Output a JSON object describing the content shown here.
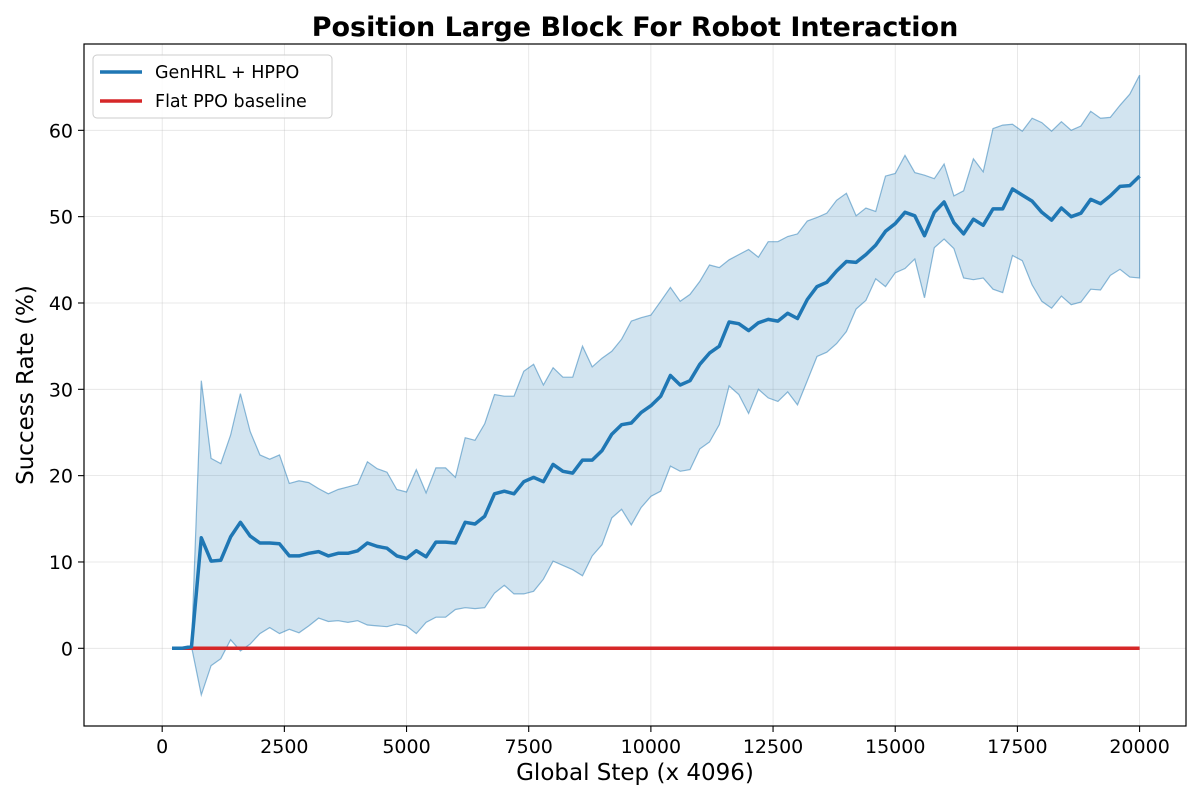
{
  "chart_data": {
    "type": "line",
    "title": "Position Large Block For Robot Interaction",
    "xlabel": "Global Step (x 4096)",
    "ylabel": "Success Rate (%)",
    "xlim": [
      -1600,
      20950
    ],
    "ylim": [
      -9,
      70
    ],
    "xticks": [
      0,
      2500,
      5000,
      7500,
      10000,
      12500,
      15000,
      17500,
      20000
    ],
    "yticks": [
      0,
      10,
      20,
      30,
      40,
      50,
      60
    ],
    "grid": true,
    "legend_position": "top-left",
    "colors": {
      "genhrl": "#1f77b4",
      "band": "#1f77b4",
      "baseline": "#d62728"
    },
    "series": [
      {
        "name": "GenHRL + HPPO",
        "x": [
          200,
          400,
          600,
          800,
          1000,
          1200,
          1400,
          1600,
          1800,
          2000,
          2200,
          2400,
          2600,
          2800,
          3000,
          3200,
          3400,
          3600,
          3800,
          4000,
          4200,
          4400,
          4600,
          4800,
          5000,
          5200,
          5400,
          5600,
          5800,
          6000,
          6200,
          6400,
          6600,
          6800,
          7000,
          7200,
          7400,
          7600,
          7800,
          8000,
          8200,
          8400,
          8600,
          8800,
          9000,
          9200,
          9400,
          9600,
          9800,
          10000,
          10200,
          10400,
          10600,
          10800,
          11000,
          11200,
          11400,
          11600,
          11800,
          12000,
          12200,
          12400,
          12600,
          12800,
          13000,
          13200,
          13400,
          13600,
          13800,
          14000,
          14200,
          14400,
          14600,
          14800,
          15000,
          15200,
          15400,
          15600,
          15800,
          16000,
          16200,
          16400,
          16600,
          16800,
          17000,
          17200,
          17400,
          17600,
          17800,
          18000,
          18200,
          18400,
          18600,
          18800,
          19000,
          19200,
          19400,
          19600,
          19800,
          20000
        ],
        "mean": [
          0,
          0,
          0.2,
          12.8,
          10.1,
          10.2,
          12.9,
          14.6,
          13.0,
          12.2,
          12.2,
          12.1,
          10.7,
          10.7,
          11.0,
          11.2,
          10.7,
          11.0,
          11.0,
          11.3,
          12.2,
          11.8,
          11.6,
          10.7,
          10.4,
          11.3,
          10.6,
          12.3,
          12.3,
          12.2,
          14.6,
          14.4,
          15.3,
          17.9,
          18.2,
          17.9,
          19.3,
          19.8,
          19.3,
          21.3,
          20.5,
          20.3,
          21.8,
          21.8,
          22.9,
          24.8,
          25.9,
          26.1,
          27.3,
          28.1,
          29.2,
          31.6,
          30.5,
          31.0,
          32.9,
          34.2,
          35.0,
          37.8,
          37.6,
          36.8,
          37.7,
          38.1,
          37.9,
          38.8,
          38.2,
          40.4,
          41.9,
          42.4,
          43.7,
          44.8,
          44.7,
          45.6,
          46.7,
          48.3,
          49.2,
          50.5,
          50.1,
          47.8,
          50.5,
          51.7,
          49.3,
          48.0,
          49.7,
          49.0,
          50.9,
          50.9,
          53.2,
          52.5,
          51.8,
          50.5,
          49.6,
          51.0,
          50.0,
          50.4,
          52.0,
          51.5,
          52.4,
          53.5,
          53.6,
          54.7
        ],
        "upper": [
          0,
          0,
          0.2,
          31.0,
          22.0,
          21.4,
          24.7,
          29.5,
          25.1,
          22.4,
          21.9,
          22.4,
          19.1,
          19.4,
          19.2,
          18.5,
          17.9,
          18.4,
          18.7,
          19.0,
          21.6,
          20.8,
          20.4,
          18.4,
          18.1,
          20.7,
          18.0,
          20.9,
          20.9,
          19.8,
          24.4,
          24.1,
          26.0,
          29.4,
          29.2,
          29.2,
          32.1,
          32.9,
          30.5,
          32.5,
          31.4,
          31.4,
          35.0,
          32.6,
          33.6,
          34.4,
          35.8,
          37.9,
          38.3,
          38.6,
          40.2,
          41.8,
          40.2,
          41.0,
          42.5,
          44.4,
          44.1,
          45.0,
          45.6,
          46.2,
          45.3,
          47.1,
          47.1,
          47.7,
          48.0,
          49.5,
          49.9,
          50.4,
          51.9,
          52.7,
          50.1,
          51.0,
          50.6,
          54.7,
          55.0,
          57.1,
          55.1,
          54.8,
          54.4,
          56.1,
          52.4,
          53.0,
          56.7,
          55.2,
          60.2,
          60.6,
          60.7,
          59.9,
          61.4,
          60.9,
          59.9,
          61.0,
          60.0,
          60.5,
          62.2,
          61.4,
          61.5,
          62.9,
          64.2,
          66.4
        ],
        "lower": [
          0,
          0,
          0.2,
          -5.4,
          -2.0,
          -1.2,
          1.0,
          -0.3,
          0.5,
          1.7,
          2.4,
          1.7,
          2.2,
          1.8,
          2.6,
          3.5,
          3.1,
          3.2,
          3.0,
          3.2,
          2.7,
          2.6,
          2.5,
          2.8,
          2.6,
          1.7,
          3.0,
          3.6,
          3.6,
          4.5,
          4.7,
          4.6,
          4.7,
          6.4,
          7.3,
          6.3,
          6.3,
          6.6,
          8.0,
          10.1,
          9.6,
          9.1,
          8.4,
          10.7,
          12.0,
          15.1,
          16.1,
          14.3,
          16.3,
          17.6,
          18.2,
          21.1,
          20.5,
          20.7,
          23.1,
          23.9,
          25.9,
          30.4,
          29.4,
          27.2,
          30.0,
          29.0,
          28.6,
          29.7,
          28.2,
          31.0,
          33.8,
          34.3,
          35.3,
          36.7,
          39.3,
          40.3,
          42.8,
          41.9,
          43.5,
          44.0,
          45.1,
          40.6,
          46.4,
          47.4,
          46.3,
          42.9,
          42.7,
          42.9,
          41.6,
          41.2,
          45.5,
          44.9,
          42.1,
          40.2,
          39.4,
          40.8,
          39.8,
          40.1,
          41.6,
          41.5,
          43.2,
          43.9,
          43.0,
          42.9
        ]
      },
      {
        "name": "Flat PPO baseline",
        "x": [
          200,
          20000
        ],
        "values": [
          0,
          0
        ]
      }
    ]
  },
  "legend": [
    "GenHRL + HPPO",
    "Flat PPO baseline"
  ]
}
